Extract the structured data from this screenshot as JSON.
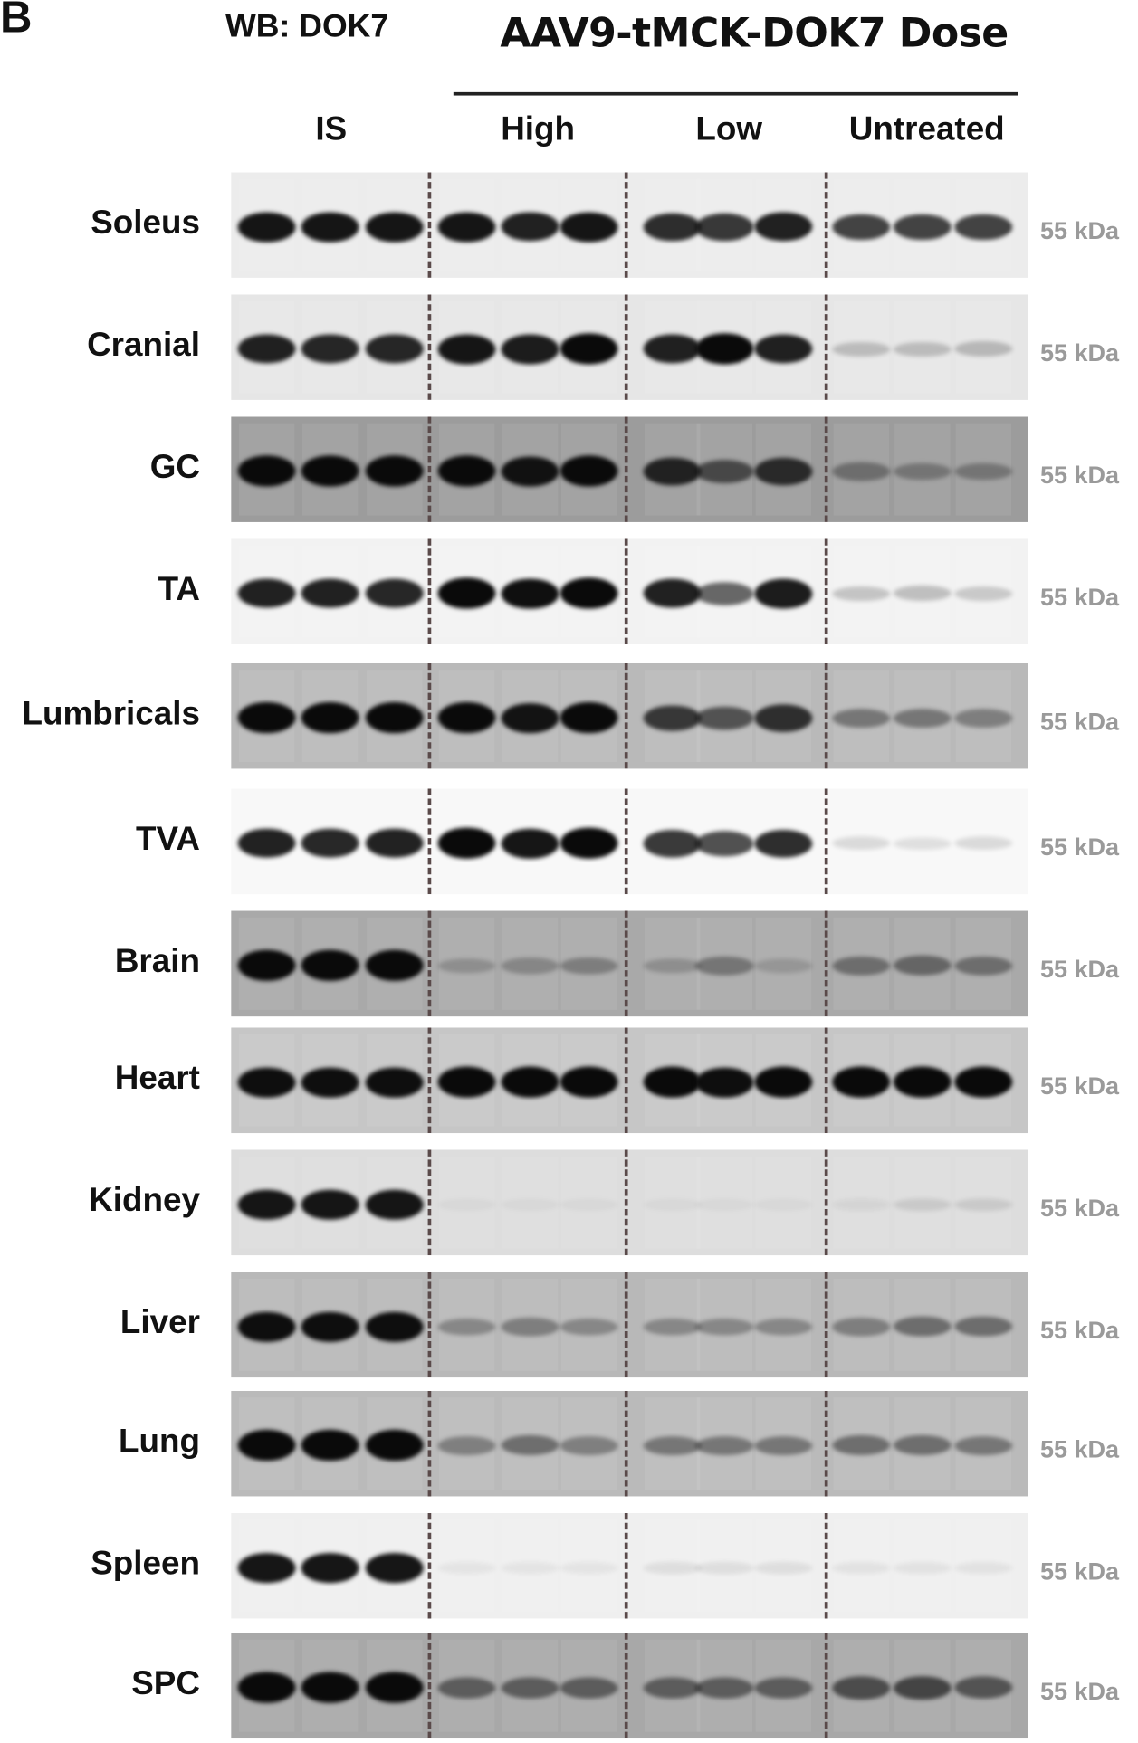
{
  "panel_label": "B",
  "antibody_label": "WB: DOK7",
  "treatment_title": "AAV9-tMCK-DOK7 Dose",
  "groups": [
    "IS",
    "High",
    "Low",
    "Untreated"
  ],
  "marker_label": "55 kDa",
  "rows": [
    {
      "tissue": "Soleus",
      "background": "#ececec",
      "bands": [
        0.95,
        0.95,
        0.95,
        0.95,
        0.9,
        0.95,
        0.85,
        0.8,
        0.9,
        0.75,
        0.75,
        0.75
      ]
    },
    {
      "tissue": "Cranial",
      "background": "#e6e6e6",
      "bands": [
        0.9,
        0.88,
        0.88,
        0.95,
        0.92,
        1,
        0.9,
        1,
        0.9,
        0.2,
        0.2,
        0.22
      ]
    },
    {
      "tissue": "GC",
      "background": "#9c9c9c",
      "bands": [
        1,
        1,
        1,
        1,
        0.95,
        1,
        0.85,
        0.6,
        0.8,
        0.35,
        0.3,
        0.3
      ]
    },
    {
      "tissue": "TA",
      "background": "#f2f2f2",
      "bands": [
        0.9,
        0.9,
        0.88,
        1,
        0.98,
        1,
        0.9,
        0.6,
        0.92,
        0.2,
        0.22,
        0.18
      ]
    },
    {
      "tissue": "Lumbricals",
      "background": "#b9b9b9",
      "bands": [
        1,
        1,
        1,
        1,
        0.95,
        1,
        0.75,
        0.6,
        0.8,
        0.4,
        0.4,
        0.35
      ]
    },
    {
      "tissue": "TVA",
      "background": "#f8f8f8",
      "bands": [
        0.9,
        0.88,
        0.9,
        1,
        0.95,
        1,
        0.8,
        0.7,
        0.85,
        0.12,
        0.1,
        0.12
      ]
    },
    {
      "tissue": "Brain",
      "background": "#a9a9a9",
      "bands": [
        1,
        1,
        1,
        0.2,
        0.25,
        0.3,
        0.2,
        0.35,
        0.15,
        0.4,
        0.45,
        0.4
      ]
    },
    {
      "tissue": "Heart",
      "background": "#c6c6c6",
      "bands": [
        0.98,
        0.98,
        0.98,
        1,
        1,
        1,
        1,
        0.98,
        1,
        1,
        1,
        1
      ]
    },
    {
      "tissue": "Kidney",
      "background": "#dddddd",
      "bands": [
        0.95,
        0.95,
        0.95,
        0.03,
        0.03,
        0.03,
        0.03,
        0.03,
        0.03,
        0.05,
        0.1,
        0.1
      ]
    },
    {
      "tissue": "Liver",
      "background": "#b8b8b8",
      "bands": [
        0.98,
        0.98,
        0.98,
        0.3,
        0.35,
        0.3,
        0.3,
        0.3,
        0.3,
        0.35,
        0.45,
        0.45
      ]
    },
    {
      "tissue": "Lung",
      "background": "#bababa",
      "bands": [
        1,
        1,
        1,
        0.35,
        0.45,
        0.35,
        0.4,
        0.4,
        0.4,
        0.45,
        0.45,
        0.4
      ]
    },
    {
      "tissue": "Spleen",
      "background": "#efefef",
      "bands": [
        0.95,
        0.95,
        0.95,
        0.05,
        0.05,
        0.05,
        0.08,
        0.08,
        0.08,
        0.06,
        0.06,
        0.06
      ]
    },
    {
      "tissue": "SPC",
      "background": "#a8a8a8",
      "bands": [
        1,
        1,
        1,
        0.5,
        0.5,
        0.5,
        0.5,
        0.5,
        0.5,
        0.6,
        0.65,
        0.55
      ]
    }
  ]
}
